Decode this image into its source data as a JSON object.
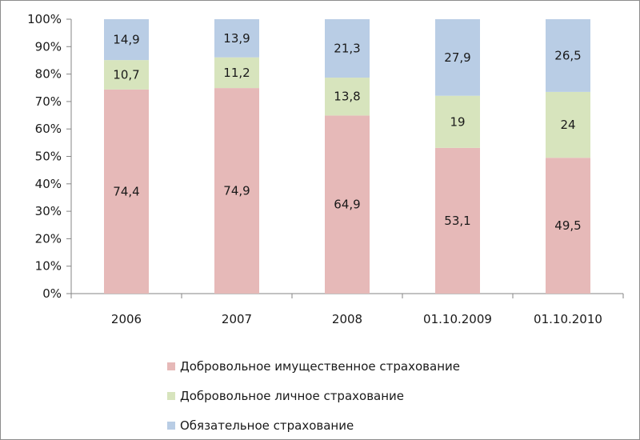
{
  "chart_data": {
    "type": "bar",
    "stacked": true,
    "percent_stacked": true,
    "categories": [
      "2006",
      "2007",
      "2008",
      "01.10.2009",
      "01.10.2010"
    ],
    "series": [
      {
        "name": "Добровольное имущественное страхование",
        "color": "#e6b9b8",
        "values": [
          74.4,
          74.9,
          64.9,
          53.1,
          49.5
        ],
        "labels": [
          "74,4",
          "74,9",
          "64,9",
          "53,1",
          "49,5"
        ]
      },
      {
        "name": "Добровольное личное страхование",
        "color": "#d7e4bd",
        "values": [
          10.7,
          11.2,
          13.8,
          19,
          24
        ],
        "labels": [
          "10,7",
          "11,2",
          "13,8",
          "19",
          "24"
        ]
      },
      {
        "name": "Обязательное страхование",
        "color": "#b9cde5",
        "values": [
          14.9,
          13.9,
          21.3,
          27.9,
          26.5
        ],
        "labels": [
          "14,9",
          "13,9",
          "21,3",
          "27,9",
          "26,5"
        ]
      }
    ],
    "y_ticks": [
      "0%",
      "10%",
      "20%",
      "30%",
      "40%",
      "50%",
      "60%",
      "70%",
      "80%",
      "90%",
      "100%"
    ],
    "ylim": [
      0,
      100
    ],
    "grid": false,
    "legend_position": "bottom"
  }
}
